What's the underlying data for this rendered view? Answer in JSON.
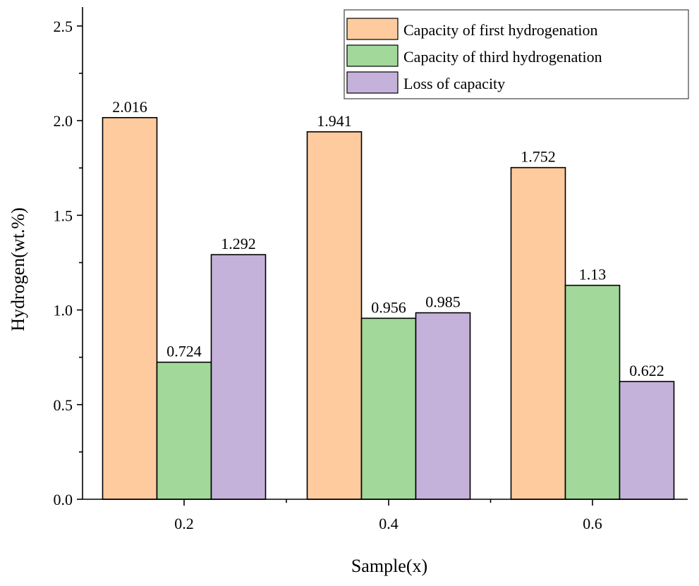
{
  "chart_data": {
    "type": "bar",
    "title": "",
    "xlabel": "Sample(x)",
    "ylabel": "Hydrogen(wt.%)",
    "ylim": [
      0,
      2.6
    ],
    "yticks": [
      "0.0",
      "0.5",
      "1.0",
      "1.5",
      "2.0",
      "2.5"
    ],
    "categories": [
      "0.2",
      "0.4",
      "0.6"
    ],
    "legend_position": "top-right",
    "series": [
      {
        "name": "Capacity of first hydrogenation",
        "color": "#FDCB9E",
        "values": [
          2.016,
          1.941,
          1.752
        ],
        "labels": [
          "2.016",
          "1.941",
          "1.752"
        ]
      },
      {
        "name": "Capacity of third hydrogenation",
        "color": "#A2D89A",
        "values": [
          0.724,
          0.956,
          1.13
        ],
        "labels": [
          "0.724",
          "0.956",
          "1.13"
        ]
      },
      {
        "name": "Loss of capacity",
        "color": "#C4B2DA",
        "values": [
          1.292,
          0.985,
          0.622
        ],
        "labels": [
          "1.292",
          "0.985",
          "0.622"
        ]
      }
    ]
  }
}
